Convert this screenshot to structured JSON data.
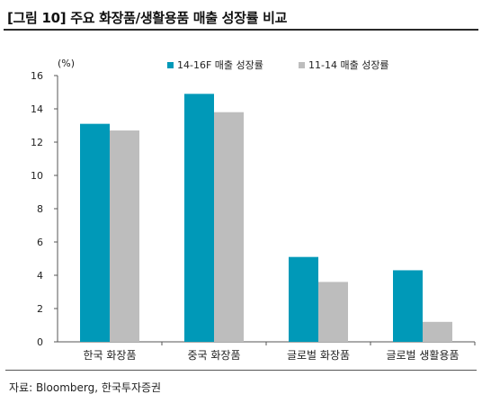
{
  "header": {
    "title": "[그림 10] 주요 화장품/생활용품 매출 성장률 비교"
  },
  "footer": {
    "source": "자료: Bloomberg, 한국투자증권"
  },
  "chart_data": {
    "type": "bar",
    "title": "[그림 10] 주요 화장품/생활용품 매출 성장률 비교",
    "ylabel": "(%)",
    "xlabel": "",
    "ylim": [
      0,
      16
    ],
    "yticks": [
      0,
      2,
      4,
      6,
      8,
      10,
      12,
      14,
      16
    ],
    "grid": false,
    "legend_position": "top-center",
    "categories": [
      "한국 화장품",
      "중국 화장품",
      "글로벌 화장품",
      "글로벌 생활용품"
    ],
    "series": [
      {
        "name": "14-16F 매출 성장률",
        "color": "#0099B8",
        "values": [
          13.1,
          14.9,
          5.1,
          4.3
        ]
      },
      {
        "name": "11-14 매출 성장률",
        "color": "#BDBDBD",
        "values": [
          12.7,
          13.8,
          3.6,
          1.2
        ]
      }
    ]
  }
}
